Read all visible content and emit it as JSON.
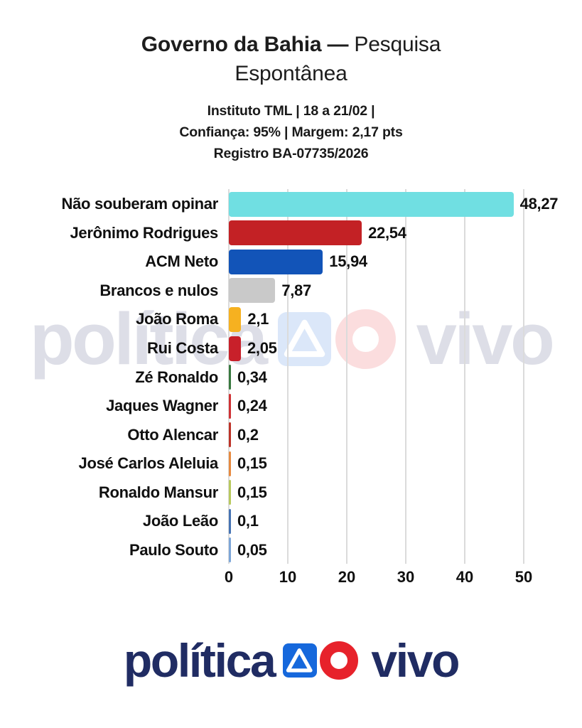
{
  "title": {
    "bold": "Governo da Bahia —",
    "regular": "Pesquisa",
    "line2": "Espontânea"
  },
  "subtitle": {
    "line1": "Instituto TML | 18 a 21/02 |",
    "line2": "Confiança: 95% | Margem: 2,17 pts",
    "line3": "Registro BA-07735/2026"
  },
  "chart_data": {
    "type": "bar",
    "orientation": "horizontal",
    "title": "Governo da Bahia — Pesquisa Espontânea",
    "categories": [
      "Não souberam opinar",
      "Jerônimo Rodrigues",
      "ACM Neto",
      "Brancos e nulos",
      "João Roma",
      "Rui Costa",
      "Zé Ronaldo",
      "Jaques Wagner",
      "Otto Alencar",
      "José Carlos Aleluia",
      "Ronaldo Mansur",
      "João Leão",
      "Paulo Souto"
    ],
    "values": [
      48.27,
      22.54,
      15.94,
      7.87,
      2.1,
      2.05,
      0.34,
      0.24,
      0.2,
      0.15,
      0.15,
      0.1,
      0.05
    ],
    "value_labels": [
      "48,27",
      "22,54",
      "15,94",
      "7,87",
      "2,1",
      "2,05",
      "0,34",
      "0,24",
      "0,2",
      "0,15",
      "0,15",
      "0,1",
      "0,05"
    ],
    "bar_colors": [
      "#70dfe2",
      "#c32125",
      "#1254b8",
      "#c9c9c9",
      "#f6b120",
      "#c8202a",
      "#38793f",
      "#cf3235",
      "#bd3328",
      "#e78a40",
      "#b8c95e",
      "#4673b4",
      "#7da6d8"
    ],
    "xlim": [
      0,
      50
    ],
    "x_ticks": [
      0,
      10,
      20,
      30,
      40,
      50
    ],
    "grid": true,
    "gridline_color": "#dbdbdb",
    "legend": false,
    "xlabel": "",
    "ylabel": ""
  },
  "branding": {
    "word1": "política",
    "word2": "vivo",
    "navy": "#202c63",
    "blue": "#1668dc",
    "red": "#e7222b",
    "watermark_opacity": 0.15
  }
}
